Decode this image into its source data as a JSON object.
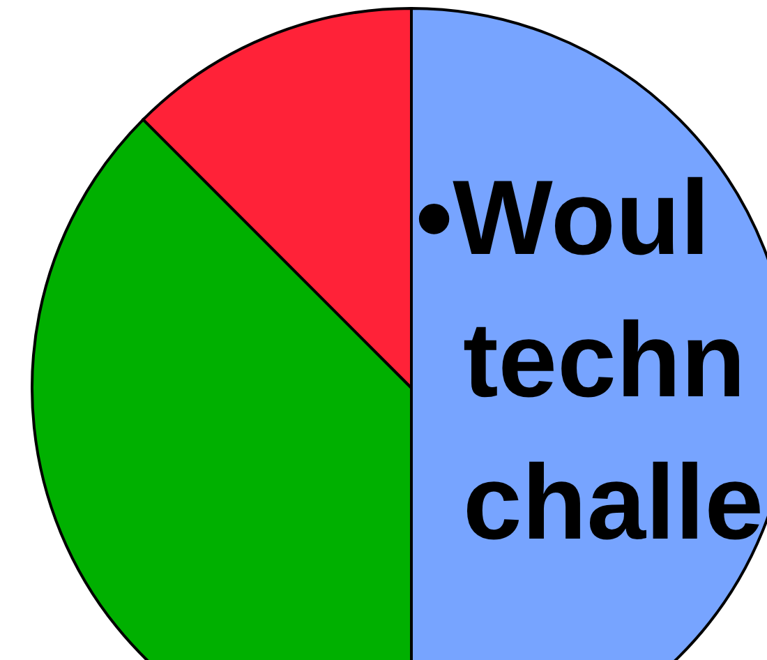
{
  "chart_data": {
    "type": "pie",
    "categories": [
      null,
      null,
      null
    ],
    "values": [
      50,
      37.5,
      12.5
    ],
    "colors": [
      "#77a4ff",
      "#00b000",
      "#ff2238"
    ],
    "annotations": [
      "•Woul",
      "techn",
      "challe"
    ],
    "legend": false
  }
}
